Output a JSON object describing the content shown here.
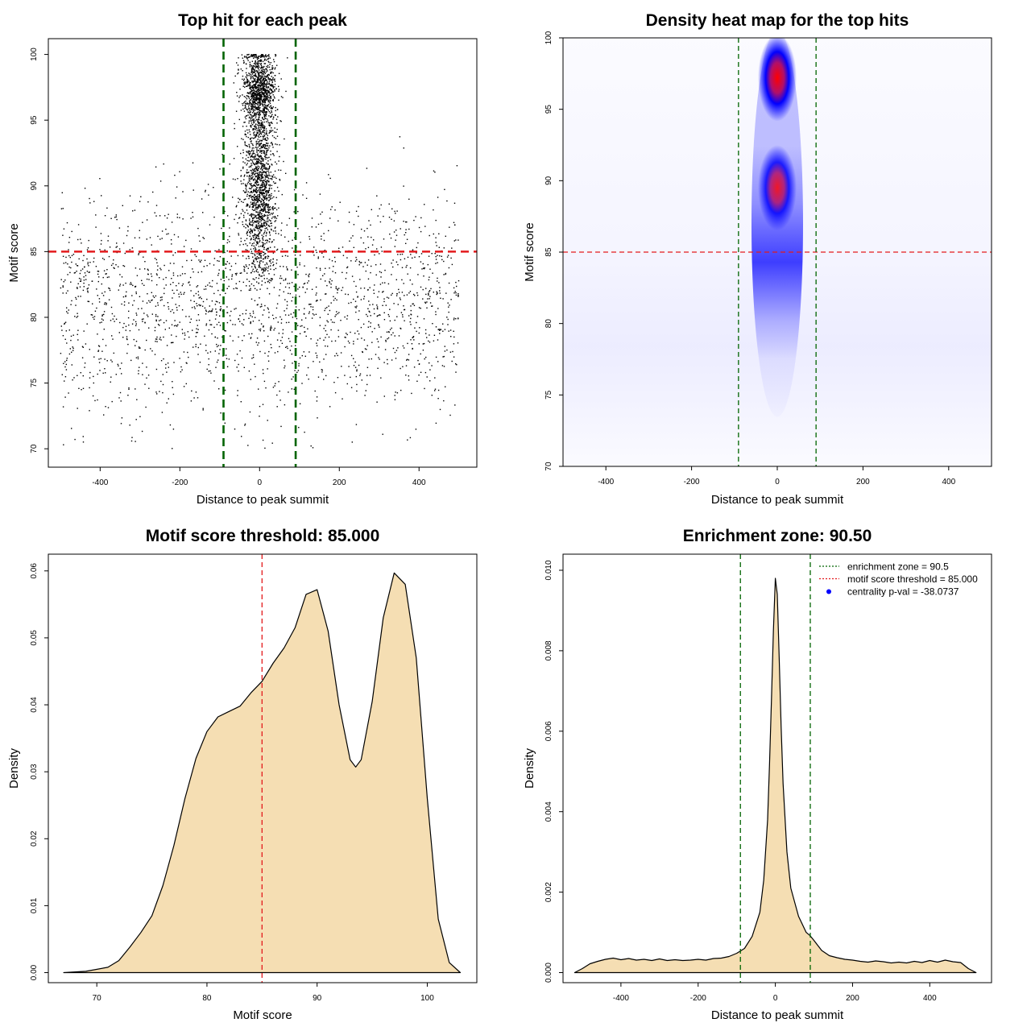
{
  "chart_data": [
    {
      "type": "scatter",
      "title": "Top hit for each peak",
      "xlabel": "Distance to peak summit",
      "ylabel": "Motif score",
      "xlim": [
        -530,
        545
      ],
      "ylim": [
        68.6,
        101.2
      ],
      "xticks": [
        "-400",
        "-200",
        "0",
        "200",
        "400"
      ],
      "yticks": [
        "70",
        "75",
        "80",
        "85",
        "90",
        "95",
        "100"
      ],
      "hlines": [
        {
          "y": 85,
          "color": "#e31a1c",
          "style": "dashed"
        }
      ],
      "vlines": [
        {
          "x": -90.5,
          "color": "#006400",
          "style": "dashed"
        },
        {
          "x": 90.5,
          "color": "#006400",
          "style": "dashed"
        }
      ],
      "distribution": {
        "n_points": 4600,
        "x_range": [
          -500,
          500
        ],
        "y_range": [
          70,
          100
        ],
        "central_fraction": 0.56,
        "central_x_sd": 20,
        "central_y_modes": [
          {
            "mean": 97.2,
            "sd": 1.7,
            "weight": 0.45
          },
          {
            "mean": 89.5,
            "sd": 3.2,
            "weight": 0.55
          }
        ]
      }
    },
    {
      "type": "heatmap",
      "title": "Density heat map for the top hits",
      "xlabel": "Distance to peak summit",
      "ylabel": "Motif score",
      "xlim": [
        -500,
        500
      ],
      "ylim": [
        70,
        100
      ],
      "xticks": [
        "-400",
        "-200",
        "0",
        "200",
        "400"
      ],
      "yticks": [
        "70",
        "75",
        "80",
        "85",
        "90",
        "95",
        "100"
      ],
      "color_scale": [
        "#ffffff",
        "#0000ff",
        "#ff0000"
      ],
      "hotspots": [
        {
          "x": 0,
          "y": 97.2,
          "intensity": 1.0
        },
        {
          "x": 0,
          "y": 89.5,
          "intensity": 0.85
        }
      ],
      "hlines": [
        {
          "y": 85,
          "color": "#e31a1c",
          "style": "dashed"
        }
      ],
      "vlines": [
        {
          "x": -90.5,
          "color": "#006400",
          "style": "dashed"
        },
        {
          "x": 90.5,
          "color": "#006400",
          "style": "dashed"
        }
      ]
    },
    {
      "type": "area",
      "title": "Motif score threshold: 85.000",
      "xlabel": "Motif score",
      "ylabel": "Density",
      "xlim": [
        65.6,
        104.5
      ],
      "ylim": [
        -0.0015,
        0.0625
      ],
      "xticks": [
        "70",
        "80",
        "90",
        "100"
      ],
      "yticks": [
        "0.00",
        "0.01",
        "0.02",
        "0.03",
        "0.04",
        "0.05",
        "0.06"
      ],
      "fill": "#f5deb3",
      "x": [
        67,
        69,
        71,
        72,
        73,
        74,
        75,
        76,
        77,
        78,
        79,
        80,
        81,
        82,
        83,
        84,
        85,
        86,
        87,
        88,
        89,
        90,
        91,
        92,
        93,
        93.5,
        94,
        95,
        96,
        97,
        98,
        99,
        100,
        101,
        102,
        103
      ],
      "y": [
        0.0,
        0.0002,
        0.0008,
        0.0018,
        0.0038,
        0.006,
        0.0085,
        0.013,
        0.019,
        0.026,
        0.032,
        0.036,
        0.0382,
        0.039,
        0.0398,
        0.0418,
        0.0435,
        0.0462,
        0.0485,
        0.0515,
        0.0565,
        0.0572,
        0.051,
        0.04,
        0.0318,
        0.0307,
        0.0318,
        0.0405,
        0.053,
        0.0597,
        0.058,
        0.047,
        0.026,
        0.008,
        0.0015,
        0.0
      ],
      "vlines": [
        {
          "x": 85,
          "color": "#e31a1c",
          "style": "dashed"
        }
      ]
    },
    {
      "type": "area",
      "title": "Enrichment zone: 90.50",
      "xlabel": "Distance to peak summit",
      "ylabel": "Density",
      "xlim": [
        -550,
        560
      ],
      "ylim": [
        -0.00025,
        0.0104
      ],
      "xticks": [
        "-400",
        "-200",
        "0",
        "200",
        "400"
      ],
      "yticks": [
        "0.000",
        "0.002",
        "0.004",
        "0.006",
        "0.008",
        "0.010"
      ],
      "fill": "#f5deb3",
      "x": [
        -520,
        -500,
        -480,
        -460,
        -440,
        -420,
        -400,
        -380,
        -360,
        -340,
        -320,
        -300,
        -280,
        -260,
        -240,
        -220,
        -200,
        -180,
        -160,
        -140,
        -120,
        -100,
        -80,
        -60,
        -40,
        -30,
        -20,
        -15,
        -10,
        -5,
        0,
        5,
        10,
        15,
        20,
        30,
        40,
        60,
        80,
        90,
        100,
        120,
        140,
        160,
        180,
        200,
        220,
        240,
        260,
        280,
        300,
        320,
        340,
        360,
        380,
        400,
        420,
        440,
        460,
        480,
        500,
        520
      ],
      "y": [
        0.0,
        0.0001,
        0.00022,
        0.00028,
        0.00033,
        0.00036,
        0.00032,
        0.00035,
        0.00031,
        0.00033,
        0.0003,
        0.00034,
        0.0003,
        0.00032,
        0.0003,
        0.00031,
        0.00033,
        0.00031,
        0.00035,
        0.00036,
        0.0004,
        0.00048,
        0.0006,
        0.0009,
        0.0015,
        0.0023,
        0.0038,
        0.0052,
        0.0068,
        0.0085,
        0.0098,
        0.0094,
        0.0078,
        0.0061,
        0.0047,
        0.003,
        0.0021,
        0.0014,
        0.001,
        0.00092,
        0.0008,
        0.00055,
        0.00042,
        0.00037,
        0.00033,
        0.00031,
        0.00028,
        0.00026,
        0.00029,
        0.00027,
        0.00024,
        0.00026,
        0.00024,
        0.00028,
        0.00025,
        0.0003,
        0.00026,
        0.00031,
        0.00027,
        0.00025,
        0.0001,
        0.0
      ],
      "vlines": [
        {
          "x": -90.5,
          "color": "#006400",
          "style": "dashed"
        },
        {
          "x": 90.5,
          "color": "#006400",
          "style": "dashed"
        }
      ],
      "legend": [
        {
          "label": "enrichment zone = 90.5",
          "style": "dotted",
          "color": "#006400"
        },
        {
          "label": "motif score threshold = 85.000",
          "style": "dotted",
          "color": "#e31a1c"
        },
        {
          "label": "centrality p-val = -38.0737",
          "style": "point",
          "color": "#0000ff"
        }
      ],
      "legend_position": "top-right"
    }
  ]
}
